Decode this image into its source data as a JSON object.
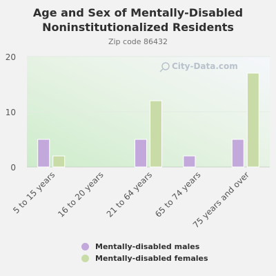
{
  "watermark": "City-Data.com",
  "chart_data": {
    "type": "bar",
    "title": "Age and Sex of Mentally-Disabled Noninstitutionalized Residents",
    "title_lines": [
      "Age and Sex of Mentally-Disabled",
      "Noninstitutionalized Residents"
    ],
    "subtitle": "Zip code 86432",
    "categories": [
      "5 to 15 years",
      "16 to 20 years",
      "21 to 64 years",
      "65 to 74 years",
      "75 years and over"
    ],
    "series": [
      {
        "name": "Mentally-disabled males",
        "color": "#c3a8dc",
        "values": [
          5,
          0,
          5,
          2,
          5
        ]
      },
      {
        "name": "Mentally-disabled females",
        "color": "#c9dca8",
        "values": [
          2,
          0,
          12,
          0,
          17
        ]
      }
    ],
    "ylim": [
      0,
      20
    ],
    "yticks": [
      0,
      10,
      20
    ],
    "grid": true,
    "legend_position": "bottom"
  }
}
